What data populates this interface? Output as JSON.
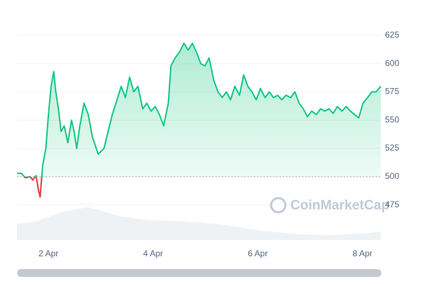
{
  "chart_data": {
    "type": "line",
    "watermark": "CoinMarketCap",
    "baseline": 500,
    "grid": true,
    "x": [
      1.4,
      1.48,
      1.56,
      1.65,
      1.7,
      1.76,
      1.81,
      1.84,
      1.89,
      1.95,
      2.0,
      2.05,
      2.1,
      2.14,
      2.19,
      2.24,
      2.3,
      2.37,
      2.44,
      2.49,
      2.54,
      2.6,
      2.68,
      2.76,
      2.84,
      2.95,
      3.06,
      3.14,
      3.22,
      3.31,
      3.39,
      3.47,
      3.55,
      3.63,
      3.71,
      3.8,
      3.88,
      3.96,
      4.04,
      4.12,
      4.2,
      4.29,
      4.34,
      4.42,
      4.5,
      4.59,
      4.67,
      4.75,
      4.83,
      4.91,
      4.99,
      5.07,
      5.16,
      5.24,
      5.32,
      5.4,
      5.48,
      5.56,
      5.65,
      5.73,
      5.81,
      5.89,
      5.97,
      6.05,
      6.14,
      6.22,
      6.3,
      6.38,
      6.46,
      6.54,
      6.63,
      6.71,
      6.79,
      6.87,
      6.95,
      7.03,
      7.12,
      7.2,
      7.28,
      7.36,
      7.44,
      7.52,
      7.61,
      7.69,
      7.77,
      7.85,
      7.93,
      8.01,
      8.1,
      8.18,
      8.26,
      8.35
    ],
    "series": [
      {
        "color": "#16c784",
        "color_below": "#ea3943",
        "values": [
          503,
          503,
          499,
          500,
          497,
          501,
          488,
          482,
          510,
          525,
          555,
          580,
          593,
          575,
          560,
          540,
          545,
          530,
          550,
          540,
          525,
          545,
          565,
          555,
          535,
          520,
          525,
          540,
          555,
          568,
          580,
          570,
          588,
          575,
          580,
          560,
          565,
          558,
          562,
          555,
          545,
          565,
          598,
          605,
          610,
          618,
          612,
          618,
          610,
          600,
          598,
          605,
          585,
          575,
          570,
          575,
          568,
          580,
          572,
          590,
          580,
          575,
          568,
          578,
          570,
          575,
          570,
          572,
          568,
          572,
          570,
          575,
          565,
          560,
          553,
          558,
          555,
          560,
          558,
          560,
          556,
          562,
          558,
          562,
          558,
          555,
          552,
          565,
          570,
          575,
          575,
          580
        ]
      }
    ],
    "xlim": [
      1.4,
      8.35
    ],
    "xticks": [
      {
        "value": 2,
        "label": "2 Apr"
      },
      {
        "value": 4,
        "label": "4 Apr"
      },
      {
        "value": 6,
        "label": "6 Apr"
      },
      {
        "value": 8,
        "label": "8 Apr"
      }
    ],
    "ylim": [
      444,
      650
    ],
    "yticks": [
      475,
      500,
      525,
      550,
      575,
      600,
      625
    ]
  }
}
